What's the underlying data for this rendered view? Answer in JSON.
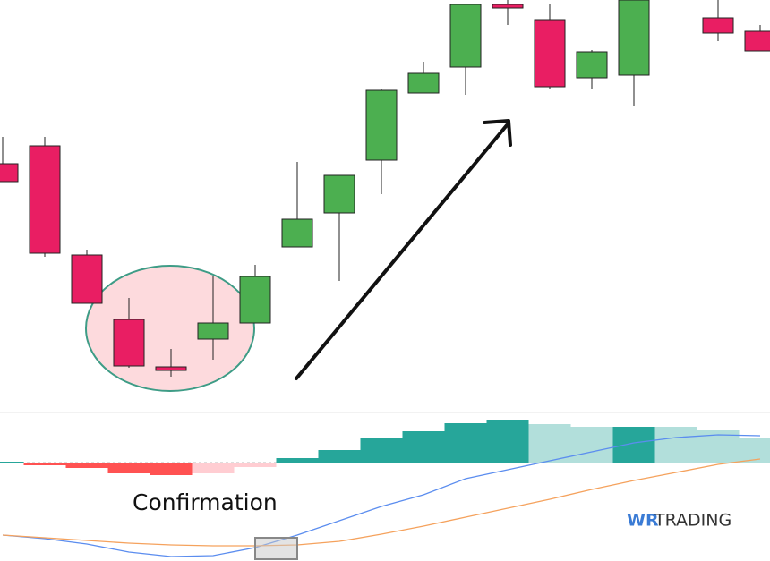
{
  "chart_data": [
    {
      "type": "candlestick",
      "x": [
        0,
        1,
        2,
        3,
        4,
        5,
        6,
        7,
        8,
        9,
        10,
        11,
        12,
        13,
        14,
        15,
        17,
        18
      ],
      "open": [
        277,
        297,
        175,
        103,
        50,
        81,
        99,
        184,
        222,
        281,
        356,
        385,
        455,
        438,
        373,
        376,
        440,
        425
      ],
      "close": [
        257,
        177,
        121,
        51,
        46,
        99,
        151,
        215,
        264,
        359,
        378,
        455,
        451,
        363,
        402,
        460,
        423,
        403
      ],
      "high": [
        307,
        307,
        181,
        127,
        70,
        151,
        164,
        279,
        264,
        361,
        391,
        455,
        460,
        455,
        404,
        460,
        460,
        432
      ],
      "low": [
        257,
        173,
        121,
        49,
        39,
        58,
        99,
        184,
        146,
        243,
        356,
        354,
        432,
        360,
        361,
        341,
        414,
        403
      ],
      "up_color": "#4caf50",
      "down_color": "#e91e63",
      "ylim": [
        0,
        460
      ]
    },
    {
      "type": "macd",
      "annotations": [
        "Confirmation"
      ],
      "x": [
        0,
        1,
        2,
        3,
        4,
        5,
        6,
        7,
        8,
        9,
        10,
        11,
        12,
        13,
        14,
        15,
        16,
        17,
        18
      ],
      "histogram": {
        "values": [
          1,
          -3,
          -6,
          -12,
          -14,
          -12,
          -5,
          5,
          14,
          27,
          35,
          44,
          48,
          43,
          40,
          40,
          40,
          36,
          27
        ],
        "colors": [
          "#26a69a",
          "#ff5252",
          "#ff5252",
          "#ff5252",
          "#ff5252",
          "#ffcdd2",
          "#ffcdd2",
          "#26a69a",
          "#26a69a",
          "#26a69a",
          "#26a69a",
          "#26a69a",
          "#26a69a",
          "#b2dfdb",
          "#b2dfdb",
          "#26a69a",
          "#b2dfdb",
          "#b2dfdb",
          "#b2dfdb"
        ]
      },
      "series": [
        {
          "color": "#5b8def",
          "values": [
            -81,
            -85,
            -91,
            -100,
            -105,
            -104,
            -95,
            -81,
            -65,
            -49,
            -36,
            -18,
            -8,
            2,
            12,
            22,
            28,
            31,
            30
          ]
        },
        {
          "color": "#f5a25d",
          "values": [
            -81,
            -84,
            -87,
            -90,
            -92,
            -93,
            -93,
            -92,
            -88,
            -80,
            -71,
            -61,
            -51,
            -41,
            -30,
            -20,
            -11,
            -2,
            4
          ]
        }
      ],
      "ylim": [
        -110,
        57
      ]
    }
  ],
  "logo": {
    "brand": "WR",
    "text": "TRADING"
  }
}
